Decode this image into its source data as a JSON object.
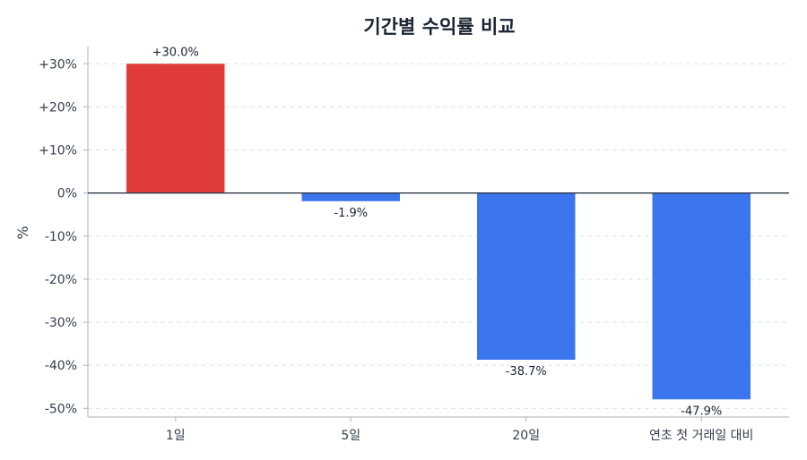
{
  "chart_data": {
    "type": "bar",
    "title": "기간별 수익률 비교",
    "ylabel": "%",
    "xlabel": "",
    "categories": [
      "1일",
      "5일",
      "20일",
      "연초 첫 거래일 대비"
    ],
    "values": [
      30.0,
      -1.9,
      -38.7,
      -47.9
    ],
    "value_labels": [
      "+30.0%",
      "-1.9%",
      "-38.7%",
      "-47.9%"
    ],
    "bar_colors": [
      "#e03c3c",
      "#3b76ee",
      "#3b76ee",
      "#3b76ee"
    ],
    "ylim": [
      -52,
      34
    ],
    "yticks": [
      30,
      20,
      10,
      0,
      -10,
      -20,
      -30,
      -40,
      -50
    ],
    "ytick_labels": [
      "+30%",
      "+20%",
      "+10%",
      "0%",
      "-10%",
      "-20%",
      "-30%",
      "-40%",
      "-50%"
    ],
    "grid": true,
    "legend": "none"
  }
}
